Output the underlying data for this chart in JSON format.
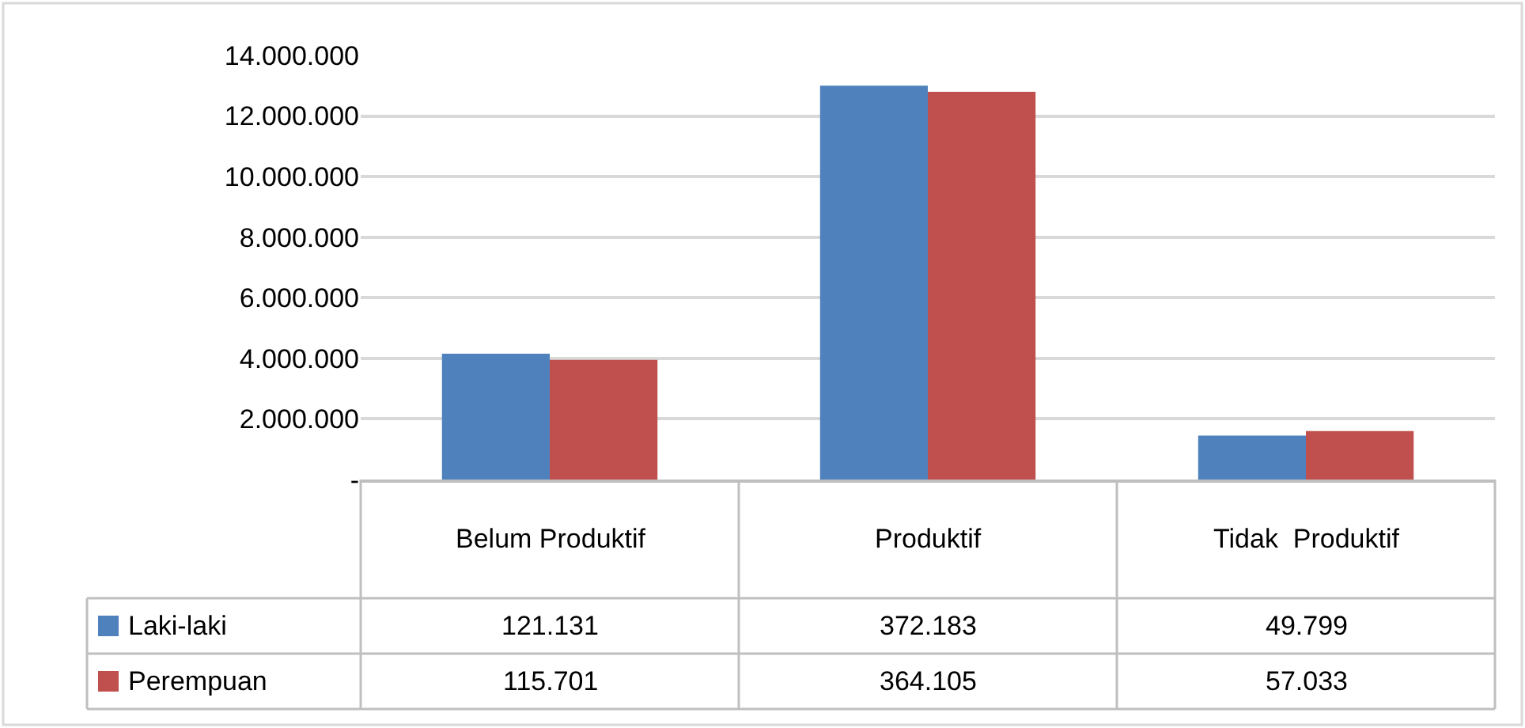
{
  "chart_data": {
    "type": "bar",
    "categories": [
      "Belum Produktif",
      "Produktif",
      "Tidak  Produktif"
    ],
    "series": [
      {
        "name": "Laki-laki",
        "color": "#4f81bd",
        "values": [
          4150000,
          13000000,
          1450000
        ]
      },
      {
        "name": "Perempuan",
        "color": "#c0504d",
        "values": [
          3950000,
          12800000,
          1600000
        ]
      }
    ],
    "annotations": [
      "121.131",
      "372.183",
      "49.799",
      "115.701",
      "364.105",
      "57.033"
    ],
    "ylim": [
      0,
      14000000
    ],
    "yticks": [
      {
        "value": 0,
        "label": "-"
      },
      {
        "value": 2000000,
        "label": "2.000.000"
      },
      {
        "value": 4000000,
        "label": "4.000.000"
      },
      {
        "value": 6000000,
        "label": "6.000.000"
      },
      {
        "value": 8000000,
        "label": "8.000.000"
      },
      {
        "value": 10000000,
        "label": "10.000.000"
      },
      {
        "value": 12000000,
        "label": "12.000.000"
      },
      {
        "value": 14000000,
        "label": "14.000.000"
      }
    ],
    "grid": "y",
    "legend": "bottom"
  }
}
